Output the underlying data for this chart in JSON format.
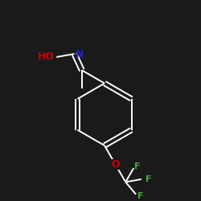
{
  "bg_color": "#1a1a1a",
  "atom_colors": {
    "HO": "#cc0000",
    "N": "#2222cc",
    "O": "#cc0000",
    "F": "#44aa44"
  },
  "font_size": 9,
  "bond_width": 1.4
}
